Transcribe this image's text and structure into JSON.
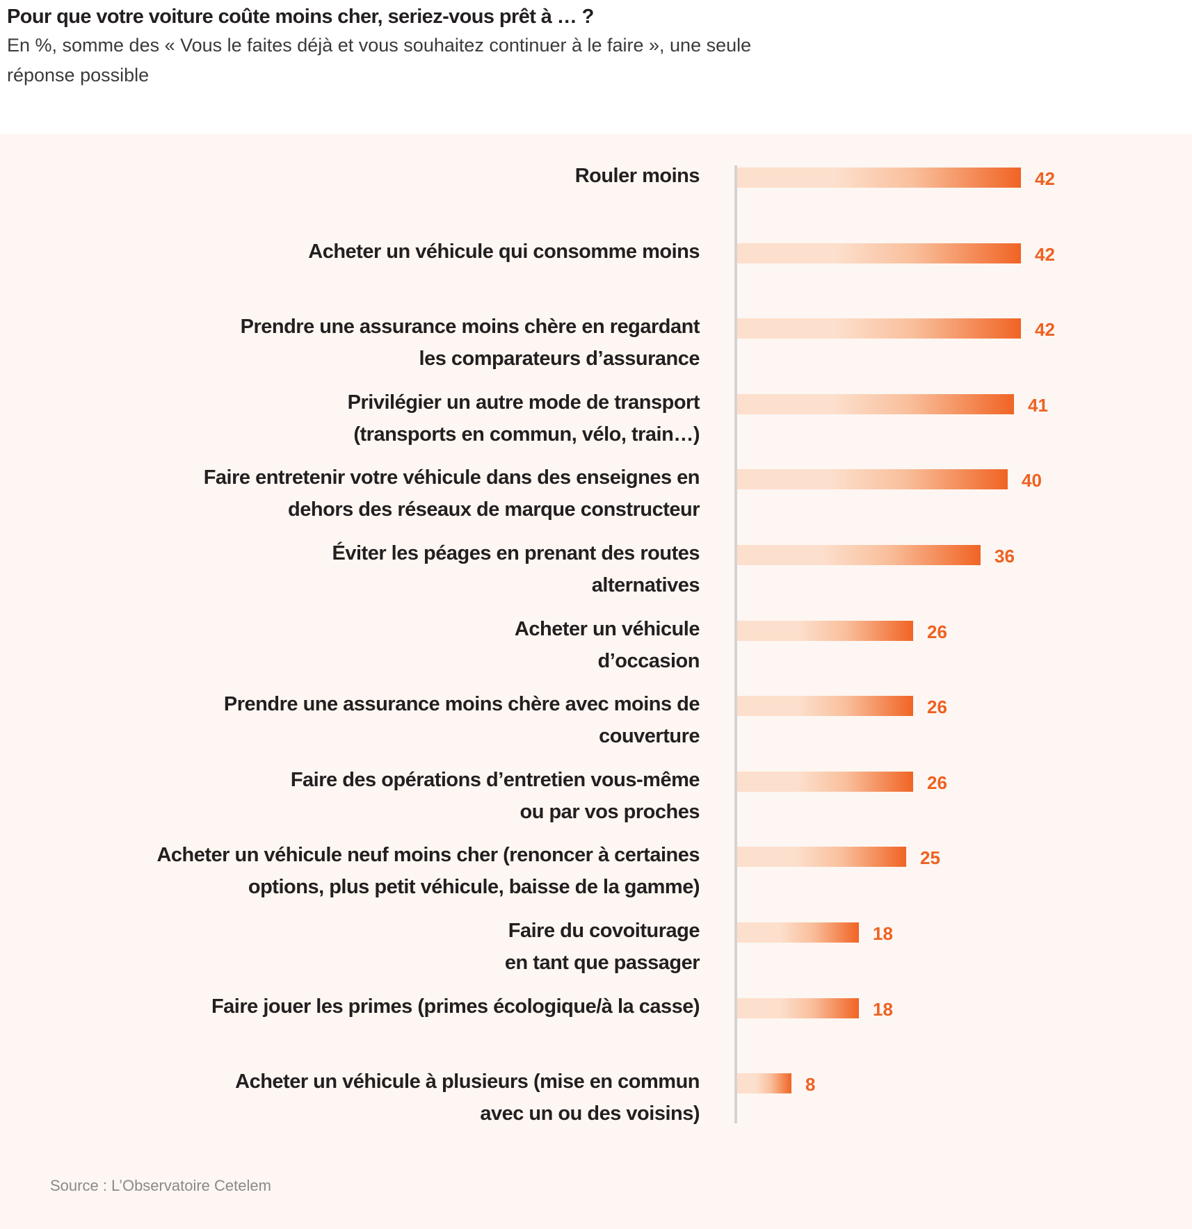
{
  "header": {
    "title": "Pour que votre voiture coûte moins cher, seriez-vous prêt à … ?",
    "subtitle": "En %, somme des « Vous le faites déjà et vous souhaitez continuer à le faire », une seule réponse possible"
  },
  "source": "Source : L’Observatoire Cetelem",
  "colors": {
    "bar_start": "#fcdfcc",
    "bar_mid": "#f9bf9c",
    "bar_end": "#f06424",
    "value_text": "#ee6121",
    "axis": "#d3d3d5",
    "panel_bg": "#fdf6f2"
  },
  "chart_data": {
    "type": "bar",
    "orientation": "horizontal",
    "title": "Pour que votre voiture coûte moins cher, seriez-vous prêt à … ?",
    "subtitle": "En %, somme des « Vous le faites déjà et vous souhaitez continuer à le faire », une seule réponse possible",
    "xlabel": "",
    "ylabel": "",
    "unit": "%",
    "xlim": [
      0,
      42
    ],
    "grid": false,
    "legend": "none",
    "categories": [
      [
        "Rouler moins"
      ],
      [
        "Acheter un véhicule qui consomme moins"
      ],
      [
        "Prendre une assurance moins chère en regardant",
        "les comparateurs d’assurance"
      ],
      [
        "Privilégier un autre mode de transport",
        "(transports en commun, vélo, train…)"
      ],
      [
        "Faire entretenir votre véhicule dans des enseignes en",
        "dehors des réseaux de marque constructeur"
      ],
      [
        "Éviter les péages en prenant des routes",
        "alternatives"
      ],
      [
        "Acheter un véhicule",
        "d’occasion"
      ],
      [
        "Prendre une assurance moins chère avec moins de",
        "couverture"
      ],
      [
        "Faire des opérations d’entretien vous-même",
        "ou par vos proches"
      ],
      [
        "Acheter un véhicule neuf moins cher (renoncer à certaines",
        "options, plus petit véhicule, baisse de la gamme)"
      ],
      [
        "Faire du covoiturage",
        "en tant que passager"
      ],
      [
        "Faire jouer les primes (primes écologique/à la casse)"
      ],
      [
        "Acheter un véhicule à plusieurs (mise en commun",
        "avec un ou des voisins)"
      ]
    ],
    "values": [
      42,
      42,
      42,
      41,
      40,
      36,
      26,
      26,
      26,
      25,
      18,
      18,
      8
    ],
    "value_labels": [
      "42",
      "42",
      "42",
      "41",
      "40",
      "36",
      "26",
      "26",
      "26",
      "25",
      "18",
      "18",
      "8"
    ],
    "source": "Source : L’Observatoire Cetelem"
  }
}
